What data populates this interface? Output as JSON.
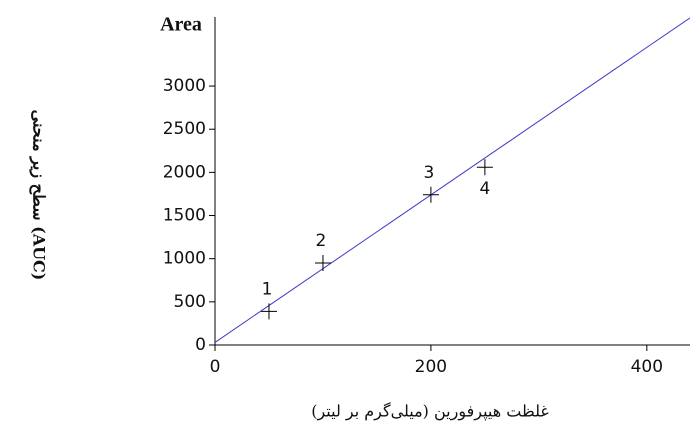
{
  "chart_data": {
    "type": "scatter",
    "y_axis_title": "Area",
    "y_label": "سطح زیر منحنی (AUC)",
    "x_label": "غلظت هیپرفورین (میلی‌گرم بر لیتر)",
    "x": [
      50,
      100,
      200,
      250
    ],
    "values": [
      390,
      950,
      1740,
      2060
    ],
    "point_labels": [
      "1",
      "2",
      "3",
      "4"
    ],
    "color": "#000000",
    "line": {
      "x": [
        0,
        440
      ],
      "values": [
        30,
        3790
      ],
      "color": "#3a3ac8"
    },
    "xlim": [
      0,
      440
    ],
    "ylim": [
      0,
      3800
    ],
    "xticks": [
      0,
      200,
      400
    ],
    "yticks": [
      0,
      500,
      1000,
      1500,
      2000,
      2500,
      3000
    ]
  }
}
